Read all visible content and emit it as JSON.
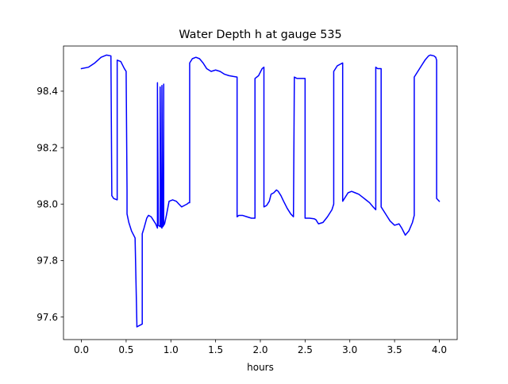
{
  "chart_data": {
    "type": "line",
    "title": "Water Depth h at gauge 535",
    "xlabel": "hours",
    "ylabel": "",
    "xlim": [
      -0.2,
      4.2
    ],
    "ylim": [
      97.52,
      98.56
    ],
    "xticks": [
      0.0,
      0.5,
      1.0,
      1.5,
      2.0,
      2.5,
      3.0,
      3.5,
      4.0
    ],
    "xtick_labels": [
      "0.0",
      "0.5",
      "1.0",
      "1.5",
      "2.0",
      "2.5",
      "3.0",
      "3.5",
      "4.0"
    ],
    "yticks": [
      97.6,
      97.8,
      98.0,
      98.2,
      98.4
    ],
    "ytick_labels": [
      "97.6",
      "97.8",
      "98.0",
      "98.2",
      "98.4"
    ],
    "grid": false,
    "legend": "none",
    "series": [
      {
        "color": "#0000ff",
        "x": [
          0.0,
          0.08,
          0.15,
          0.22,
          0.28,
          0.33,
          0.34,
          0.36,
          0.4,
          0.4,
          0.44,
          0.48,
          0.5,
          0.51,
          0.51,
          0.53,
          0.56,
          0.6,
          0.62,
          0.62,
          0.65,
          0.68,
          0.68,
          0.7,
          0.73,
          0.75,
          0.78,
          0.81,
          0.83,
          0.85,
          0.85,
          0.86,
          0.88,
          0.88,
          0.89,
          0.9,
          0.9,
          0.91,
          0.92,
          0.92,
          0.92,
          0.93,
          0.93,
          0.93,
          0.95,
          0.98,
          1.02,
          1.06,
          1.09,
          1.12,
          1.15,
          1.18,
          1.2,
          1.21,
          1.21,
          1.24,
          1.28,
          1.32,
          1.36,
          1.4,
          1.45,
          1.5,
          1.55,
          1.6,
          1.65,
          1.7,
          1.74,
          1.74,
          1.76,
          1.8,
          1.85,
          1.9,
          1.94,
          1.94,
          1.98,
          2.02,
          2.04,
          2.04,
          2.07,
          2.1,
          2.12,
          2.15,
          2.18,
          2.2,
          2.23,
          2.26,
          2.3,
          2.34,
          2.37,
          2.38,
          2.38,
          2.41,
          2.46,
          2.5,
          2.5,
          2.55,
          2.6,
          2.62,
          2.65,
          2.7,
          2.75,
          2.8,
          2.82,
          2.82,
          2.86,
          2.89,
          2.92,
          2.92,
          2.95,
          2.98,
          3.02,
          3.06,
          3.1,
          3.14,
          3.18,
          3.22,
          3.26,
          3.29,
          3.29,
          3.31,
          3.33,
          3.35,
          3.35,
          3.38,
          3.42,
          3.45,
          3.5,
          3.55,
          3.58,
          3.62,
          3.66,
          3.7,
          3.72,
          3.72,
          3.76,
          3.8,
          3.84,
          3.88,
          3.9,
          3.94,
          3.96,
          3.97,
          3.97,
          4.0
        ],
        "y": [
          98.48,
          98.485,
          98.5,
          98.52,
          98.528,
          98.525,
          98.03,
          98.02,
          98.015,
          98.51,
          98.505,
          98.48,
          98.47,
          98.05,
          97.965,
          97.935,
          97.905,
          97.88,
          97.575,
          97.565,
          97.57,
          97.575,
          97.895,
          97.915,
          97.95,
          97.96,
          97.955,
          97.94,
          97.93,
          97.915,
          98.43,
          97.925,
          97.92,
          98.415,
          97.92,
          97.915,
          98.42,
          97.92,
          97.925,
          98.425,
          97.925,
          97.93,
          97.93,
          97.93,
          97.96,
          98.01,
          98.015,
          98.01,
          98.0,
          97.99,
          97.995,
          98.0,
          98.005,
          98.005,
          98.5,
          98.515,
          98.52,
          98.515,
          98.5,
          98.48,
          98.47,
          98.475,
          98.47,
          98.46,
          98.455,
          98.452,
          98.45,
          97.955,
          97.96,
          97.96,
          97.955,
          97.95,
          97.95,
          98.445,
          98.455,
          98.48,
          98.485,
          97.99,
          97.995,
          98.01,
          98.035,
          98.04,
          98.05,
          98.045,
          98.03,
          98.01,
          97.985,
          97.965,
          97.955,
          98.45,
          98.45,
          98.445,
          98.445,
          98.445,
          97.95,
          97.95,
          97.948,
          97.945,
          97.93,
          97.935,
          97.955,
          97.98,
          98.0,
          98.47,
          98.49,
          98.495,
          98.5,
          98.01,
          98.025,
          98.04,
          98.045,
          98.04,
          98.035,
          98.025,
          98.015,
          98.005,
          97.99,
          97.98,
          98.485,
          98.48,
          98.48,
          98.48,
          97.99,
          97.975,
          97.955,
          97.94,
          97.925,
          97.93,
          97.915,
          97.89,
          97.905,
          97.935,
          97.96,
          98.45,
          98.47,
          98.49,
          98.51,
          98.525,
          98.528,
          98.525,
          98.52,
          98.51,
          98.02,
          98.01
        ]
      }
    ]
  }
}
